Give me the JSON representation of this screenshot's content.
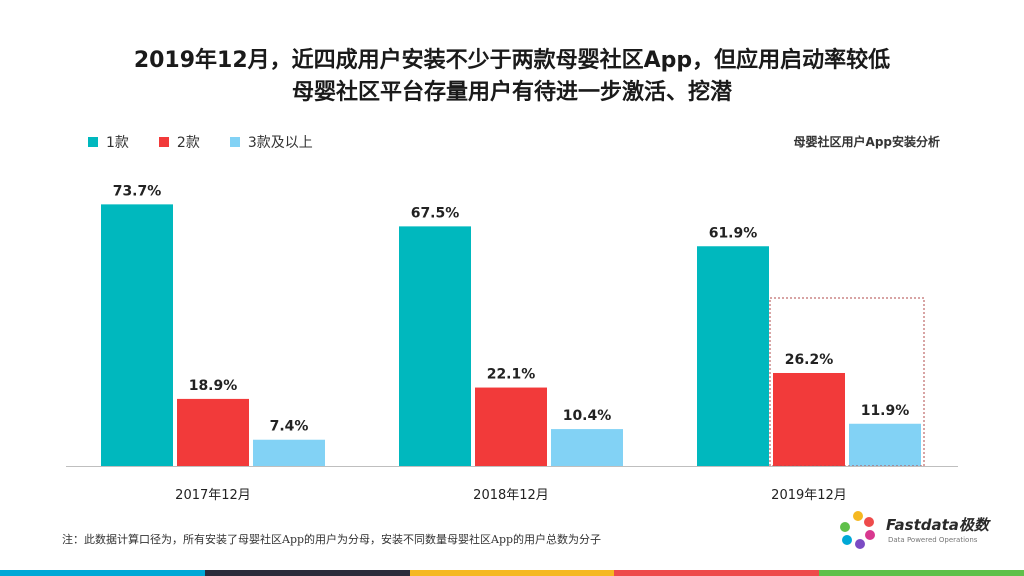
{
  "header": {
    "title_line1": "2019年12月，近四成用户安装不少于两款母婴社区App，但应用启动率较低",
    "title_line2": "母婴社区平台存量用户有待进一步激活、挖潜"
  },
  "chart_subtitle": "母婴社区用户App安装分析",
  "chart_data": {
    "type": "bar",
    "categories": [
      "2017年12月",
      "2018年12月",
      "2019年12月"
    ],
    "series": [
      {
        "name": "1款",
        "values": [
          73.7,
          67.5,
          61.9
        ],
        "color": "#00B8BE"
      },
      {
        "name": "2款",
        "values": [
          18.9,
          22.1,
          26.2
        ],
        "color": "#F23A3A"
      },
      {
        "name": "3款及以上",
        "values": [
          7.4,
          10.4,
          11.9
        ],
        "color": "#82D2F5"
      }
    ],
    "value_suffix": "%",
    "ylim": [
      0,
      80
    ],
    "grid": false,
    "legend": "top-left",
    "highlight_category": "2019年12月"
  },
  "footnote": "注：此数据计算口径为，所有安装了母婴社区App的用户为分母，安装不同数量母婴社区App的用户总数为分子",
  "logo": {
    "name": "Fastdata极数",
    "tagline": "Data Powered Operations"
  },
  "bottom_strip_colors": [
    "#00A8D6",
    "#2B2B3A",
    "#F5B821",
    "#EE4B4B",
    "#5FC04A"
  ]
}
